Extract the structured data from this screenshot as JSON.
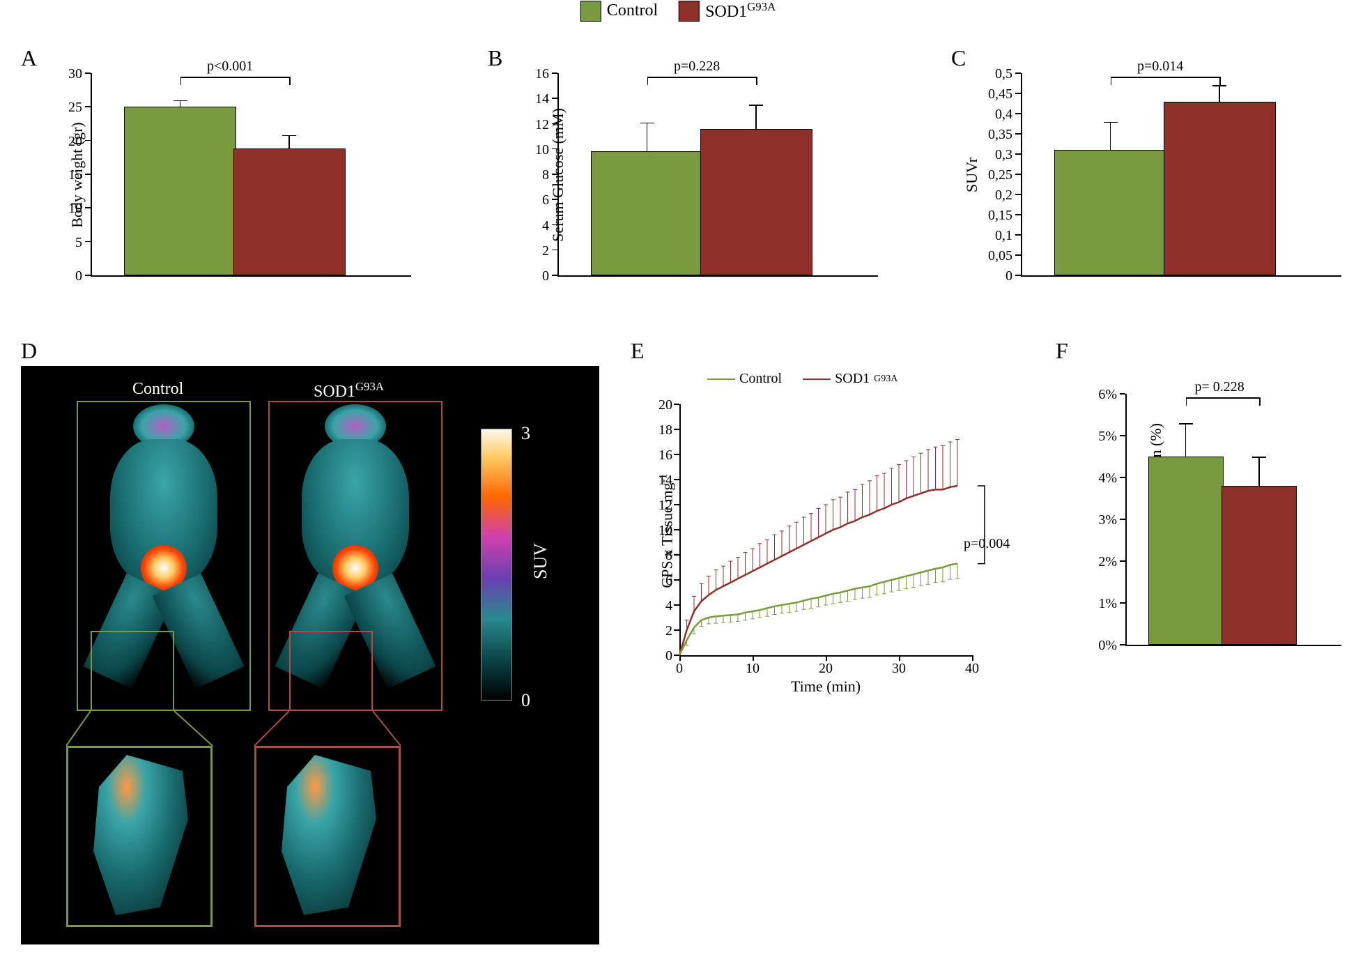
{
  "legend": {
    "control_label": "Control",
    "sod1_label": "SOD1",
    "sod1_sup": "G93A",
    "control_color": "#7a9a3f",
    "sod1_color": "#8e2f2a"
  },
  "panelA": {
    "label": "A",
    "ylabel": "Body weight (gr)",
    "ylim": [
      0,
      30
    ],
    "ytick_step": 5,
    "control_val": 25,
    "control_err": 1,
    "sod1_val": 18.8,
    "sod1_err": 2,
    "p_text": "p<0.001",
    "bar_width": 0.35,
    "colors": {
      "control": "#7a9a3f",
      "sod1": "#8e2f2a"
    }
  },
  "panelB": {
    "label": "B",
    "ylabel": "Serum Glucose (mM)",
    "ylim": [
      0,
      16
    ],
    "ytick_step": 2,
    "control_val": 9.8,
    "control_err": 2.3,
    "sod1_val": 11.6,
    "sod1_err": 1.9,
    "p_text": "p=0.228",
    "bar_width": 0.35,
    "colors": {
      "control": "#7a9a3f",
      "sod1": "#8e2f2a"
    }
  },
  "panelC": {
    "label": "C",
    "ylabel": "SUVr",
    "ylim": [
      0,
      0.5
    ],
    "ytick_step": 0.05,
    "control_val": 0.31,
    "control_err": 0.07,
    "sod1_val": 0.43,
    "sod1_err": 0.04,
    "p_text": "p=0.014",
    "bar_width": 0.35,
    "decimal_comma": true,
    "colors": {
      "control": "#7a9a3f",
      "sod1": "#8e2f2a"
    }
  },
  "panelD": {
    "label": "D",
    "control_label": "Control",
    "sod1_label": "SOD1",
    "sod1_sup": "G93A",
    "colorbar_label": "SUV",
    "colorbar_max": "3",
    "colorbar_min": "0",
    "bg": "#000000",
    "box_control_color": "#7a9a3f",
    "box_sod1_color": "#a94e48"
  },
  "panelE": {
    "label": "E",
    "ylabel": "CPS x Tissue mg",
    "ylabel_sup": "-1",
    "xlabel": "Time (min)",
    "xlim": [
      0,
      40
    ],
    "xtick_step": 10,
    "ylim": [
      0,
      20
    ],
    "ytick_step": 2,
    "p_text": "p=0.004",
    "legend": {
      "control": "Control",
      "sod1": "SOD1",
      "sod1_sup": "G93A"
    },
    "control_color": "#7a9a3f",
    "sod1_color": "#8e2f2a",
    "control_series": [
      [
        0,
        0,
        0
      ],
      [
        1,
        1.2,
        0.4
      ],
      [
        2,
        2.2,
        0.5
      ],
      [
        3,
        2.8,
        0.5
      ],
      [
        4,
        3.0,
        0.5
      ],
      [
        5,
        3.1,
        0.55
      ],
      [
        6,
        3.15,
        0.55
      ],
      [
        7,
        3.2,
        0.55
      ],
      [
        8,
        3.25,
        0.55
      ],
      [
        9,
        3.4,
        0.6
      ],
      [
        10,
        3.5,
        0.6
      ],
      [
        11,
        3.6,
        0.6
      ],
      [
        12,
        3.75,
        0.65
      ],
      [
        13,
        3.9,
        0.65
      ],
      [
        14,
        4.0,
        0.65
      ],
      [
        15,
        4.1,
        0.7
      ],
      [
        16,
        4.2,
        0.7
      ],
      [
        17,
        4.35,
        0.7
      ],
      [
        18,
        4.5,
        0.75
      ],
      [
        19,
        4.6,
        0.75
      ],
      [
        20,
        4.75,
        0.75
      ],
      [
        21,
        4.9,
        0.8
      ],
      [
        22,
        5.0,
        0.8
      ],
      [
        23,
        5.15,
        0.85
      ],
      [
        24,
        5.3,
        0.85
      ],
      [
        25,
        5.4,
        0.85
      ],
      [
        26,
        5.5,
        0.9
      ],
      [
        27,
        5.7,
        0.9
      ],
      [
        28,
        5.85,
        0.95
      ],
      [
        29,
        6.0,
        0.95
      ],
      [
        30,
        6.15,
        1.0
      ],
      [
        31,
        6.3,
        1.0
      ],
      [
        32,
        6.45,
        1.05
      ],
      [
        33,
        6.6,
        1.05
      ],
      [
        34,
        6.75,
        1.1
      ],
      [
        35,
        6.9,
        1.1
      ],
      [
        36,
        7.0,
        1.15
      ],
      [
        37,
        7.2,
        1.15
      ],
      [
        38,
        7.3,
        1.2
      ]
    ],
    "sod1_series": [
      [
        0,
        0,
        0
      ],
      [
        1,
        2.0,
        0.8
      ],
      [
        2,
        3.5,
        1.2
      ],
      [
        3,
        4.3,
        1.4
      ],
      [
        4,
        4.8,
        1.5
      ],
      [
        5,
        5.2,
        1.6
      ],
      [
        6,
        5.5,
        1.6
      ],
      [
        7,
        5.8,
        1.7
      ],
      [
        8,
        6.1,
        1.7
      ],
      [
        9,
        6.4,
        1.8
      ],
      [
        10,
        6.7,
        1.8
      ],
      [
        11,
        7.0,
        1.9
      ],
      [
        12,
        7.3,
        1.9
      ],
      [
        13,
        7.6,
        2.0
      ],
      [
        14,
        7.9,
        2.0
      ],
      [
        15,
        8.2,
        2.1
      ],
      [
        16,
        8.5,
        2.1
      ],
      [
        17,
        8.8,
        2.2
      ],
      [
        18,
        9.1,
        2.2
      ],
      [
        19,
        9.4,
        2.3
      ],
      [
        20,
        9.7,
        2.3
      ],
      [
        21,
        10.0,
        2.4
      ],
      [
        22,
        10.2,
        2.4
      ],
      [
        23,
        10.5,
        2.5
      ],
      [
        24,
        10.7,
        2.5
      ],
      [
        25,
        11.0,
        2.6
      ],
      [
        26,
        11.2,
        2.7
      ],
      [
        27,
        11.5,
        2.8
      ],
      [
        28,
        11.7,
        2.8
      ],
      [
        29,
        12.0,
        2.9
      ],
      [
        30,
        12.2,
        3.0
      ],
      [
        31,
        12.5,
        3.0
      ],
      [
        32,
        12.7,
        3.1
      ],
      [
        33,
        12.9,
        3.2
      ],
      [
        34,
        13.1,
        3.3
      ],
      [
        35,
        13.2,
        3.4
      ],
      [
        36,
        13.2,
        3.5
      ],
      [
        37,
        13.4,
        3.6
      ],
      [
        38,
        13.5,
        3.7
      ]
    ]
  },
  "panelF": {
    "label": "F",
    "ylabel": "Glucose extraction fraction (%)",
    "ylim": [
      0,
      6
    ],
    "ytick_step": 1,
    "control_val": 4.5,
    "control_err": 0.8,
    "sod1_val": 3.8,
    "sod1_err": 0.7,
    "p_text": "p= 0.228",
    "percent_ticks": true,
    "bar_width": 0.35,
    "colors": {
      "control": "#7a9a3f",
      "sod1": "#8e2f2a"
    }
  }
}
